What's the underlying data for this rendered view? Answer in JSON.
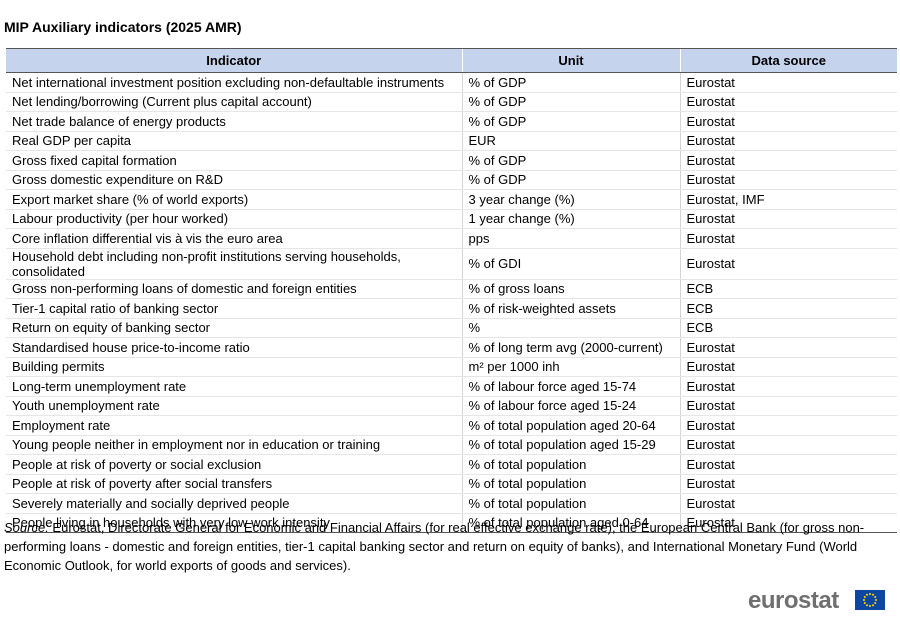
{
  "header": {
    "title": "MIP Auxiliary indicators (2025 AMR)"
  },
  "table": {
    "columns": [
      "Indicator",
      "Unit",
      "Data source"
    ],
    "rows": [
      [
        "Net international investment position excluding non-defaultable instruments",
        "% of GDP",
        "Eurostat"
      ],
      [
        "Net lending/borrowing (Current plus capital account)",
        "% of GDP",
        "Eurostat"
      ],
      [
        "Net trade balance of energy products",
        "% of GDP",
        "Eurostat"
      ],
      [
        "Real GDP per capita",
        "EUR",
        "Eurostat"
      ],
      [
        "Gross fixed capital formation",
        "% of GDP",
        "Eurostat"
      ],
      [
        "Gross domestic expenditure on R&D",
        "% of GDP",
        "Eurostat"
      ],
      [
        "Export market share (% of world exports)",
        "3 year change (%)",
        "Eurostat, IMF"
      ],
      [
        "Labour productivity (per hour worked)",
        "1 year change (%)",
        "Eurostat"
      ],
      [
        "Core inflation differential vis à vis the euro area",
        "pps",
        "Eurostat"
      ],
      [
        "Household debt including non-profit institutions serving households, consolidated",
        "% of GDI",
        "Eurostat"
      ],
      [
        "Gross non-performing loans of domestic and foreign entities",
        "% of gross loans",
        "ECB"
      ],
      [
        "Tier-1 capital ratio of banking sector",
        "% of risk-weighted assets",
        "ECB"
      ],
      [
        "Return on equity of banking sector",
        "%",
        "ECB"
      ],
      [
        "Standardised house price-to-income ratio",
        "% of long term avg (2000-current)",
        "Eurostat"
      ],
      [
        "Building permits",
        "m² per 1000 inh",
        "Eurostat"
      ],
      [
        "Long-term unemployment rate",
        "% of labour force aged 15-74",
        "Eurostat"
      ],
      [
        "Youth unemployment rate",
        "% of labour force aged 15-24",
        "Eurostat"
      ],
      [
        "Employment rate",
        "% of total population aged 20-64",
        "Eurostat"
      ],
      [
        "Young people neither in employment nor in education or training",
        "% of total population aged 15-29",
        "Eurostat"
      ],
      [
        "People at risk of poverty or social exclusion",
        "% of total population",
        "Eurostat"
      ],
      [
        "People at risk of poverty after social transfers",
        "% of total population",
        "Eurostat"
      ],
      [
        "Severely materially and socially deprived people",
        "% of total population",
        "Eurostat"
      ],
      [
        "People living in households with very low work intensity",
        "% of total population aged 0-64",
        "Eurostat"
      ]
    ]
  },
  "source": {
    "label": "Source:",
    "text": " Eurostat, Directorate General for Economic and Financial Affairs (for real effective exchange rate), the European Central Bank (for gross non-performing loans - domestic and foreign entities, tier-1 capital banking sector and return on equity of banks), and International Monetary Fund (World Economic Outlook, for world exports of goods and services)."
  },
  "logo": "eurostat"
}
